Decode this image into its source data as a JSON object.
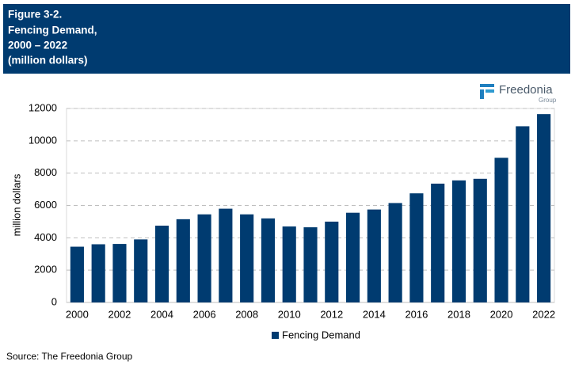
{
  "header": {
    "lines": [
      "Figure 3-2.",
      "Fencing Demand,",
      "2000 – 2022",
      "(million dollars)"
    ]
  },
  "logo": {
    "name": "Freedonia",
    "sub": "Group"
  },
  "chart_data": {
    "type": "bar",
    "categories": [
      "2000",
      null,
      "2002",
      null,
      "2004",
      null,
      "2006",
      null,
      "2008",
      null,
      "2010",
      null,
      "2012",
      null,
      "2014",
      null,
      "2016",
      null,
      "2018",
      null,
      "2020",
      null,
      "2022"
    ],
    "series": [
      {
        "name": "Fencing Demand",
        "color": "#003b70",
        "values": [
          3450,
          3600,
          3620,
          3900,
          4750,
          5150,
          5450,
          5800,
          5450,
          5200,
          4700,
          4650,
          5000,
          5550,
          5750,
          6150,
          6750,
          7350,
          7550,
          7650,
          8950,
          10900,
          11650
        ]
      }
    ],
    "y_label": "million dollars",
    "ylim": [
      0,
      12000
    ],
    "yticks": [
      0,
      2000,
      4000,
      6000,
      8000,
      10000,
      12000
    ],
    "grid": true,
    "legend": "bottom"
  },
  "source": "Source: The Freedonia Group"
}
